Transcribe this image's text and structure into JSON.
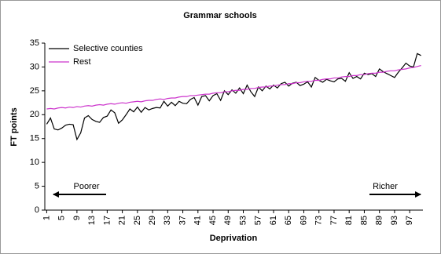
{
  "chart_data": {
    "type": "line",
    "title": "Grammar schools",
    "x_label": "Deprivation",
    "y_label": "FT points",
    "x": [
      1,
      2,
      3,
      4,
      5,
      6,
      7,
      8,
      9,
      10,
      11,
      12,
      13,
      14,
      15,
      16,
      17,
      18,
      19,
      20,
      21,
      22,
      23,
      24,
      25,
      26,
      27,
      28,
      29,
      30,
      31,
      32,
      33,
      34,
      35,
      36,
      37,
      38,
      39,
      40,
      41,
      42,
      43,
      44,
      45,
      46,
      47,
      48,
      49,
      50,
      51,
      52,
      53,
      54,
      55,
      56,
      57,
      58,
      59,
      60,
      61,
      62,
      63,
      64,
      65,
      66,
      67,
      68,
      69,
      70,
      71,
      72,
      73,
      74,
      75,
      76,
      77,
      78,
      79,
      80,
      81,
      82,
      83,
      84,
      85,
      86,
      87,
      88,
      89,
      90,
      91,
      92,
      93,
      94,
      95,
      96,
      97,
      98,
      99,
      100
    ],
    "series": [
      {
        "name": "Selective counties",
        "color": "#000000",
        "values": [
          18.0,
          19.3,
          17.0,
          16.8,
          17.2,
          17.8,
          18.0,
          17.9,
          14.8,
          16.2,
          19.3,
          19.8,
          19.0,
          18.6,
          18.4,
          19.4,
          19.7,
          21.0,
          20.4,
          18.2,
          18.9,
          20.0,
          21.2,
          20.6,
          21.6,
          20.5,
          21.5,
          21.0,
          21.3,
          21.5,
          21.4,
          22.8,
          21.8,
          22.6,
          21.9,
          22.8,
          22.4,
          22.3,
          23.2,
          23.6,
          22.0,
          23.8,
          24.0,
          22.9,
          24.0,
          24.4,
          23.0,
          25.0,
          24.2,
          25.2,
          24.5,
          25.6,
          24.4,
          26.2,
          24.8,
          23.8,
          25.8,
          25.0,
          26.0,
          25.4,
          26.2,
          25.6,
          26.5,
          26.8,
          26.0,
          26.6,
          26.8,
          26.1,
          26.4,
          26.9,
          25.8,
          27.8,
          27.2,
          26.8,
          27.4,
          27.1,
          26.9,
          27.5,
          27.6,
          27.0,
          28.8,
          27.6,
          28.0,
          27.5,
          28.7,
          28.4,
          28.6,
          28.0,
          29.6,
          29.0,
          28.6,
          28.2,
          27.8,
          28.9,
          29.8,
          30.8,
          30.2,
          30.0,
          32.8,
          32.4
        ]
      },
      {
        "name": "Rest",
        "color": "#cc33cc",
        "values": [
          21.2,
          21.3,
          21.2,
          21.4,
          21.5,
          21.4,
          21.6,
          21.5,
          21.7,
          21.6,
          21.8,
          21.9,
          21.8,
          22.0,
          22.1,
          22.0,
          22.2,
          22.3,
          22.2,
          22.4,
          22.5,
          22.4,
          22.6,
          22.7,
          22.8,
          22.7,
          22.9,
          23.0,
          23.0,
          23.2,
          23.3,
          23.2,
          23.4,
          23.5,
          23.5,
          23.7,
          23.8,
          23.8,
          24.0,
          24.0,
          24.1,
          24.2,
          24.3,
          24.3,
          24.5,
          24.6,
          24.6,
          24.8,
          24.8,
          25.0,
          25.1,
          25.1,
          25.3,
          25.3,
          25.5,
          25.5,
          25.7,
          25.8,
          25.8,
          26.0,
          26.0,
          26.2,
          26.3,
          26.3,
          26.5,
          26.5,
          26.7,
          26.7,
          26.9,
          27.0,
          27.0,
          27.2,
          27.2,
          27.4,
          27.5,
          27.5,
          27.7,
          27.7,
          27.9,
          28.0,
          28.0,
          28.2,
          28.2,
          28.4,
          28.4,
          28.6,
          28.7,
          28.7,
          28.9,
          28.9,
          29.1,
          29.2,
          29.2,
          29.4,
          29.5,
          29.6,
          29.8,
          29.9,
          30.1,
          30.3
        ]
      }
    ],
    "xlim": [
      0.5,
      100.5
    ],
    "xticks": [
      1,
      5,
      9,
      13,
      17,
      21,
      25,
      29,
      33,
      37,
      41,
      45,
      49,
      53,
      57,
      61,
      65,
      69,
      73,
      77,
      81,
      85,
      89,
      93,
      97
    ],
    "ylim": [
      0,
      35
    ],
    "yticks": [
      0,
      5,
      10,
      15,
      20,
      25,
      30,
      35
    ],
    "annotations": [
      {
        "text": "Poorer"
      },
      {
        "text": "Richer"
      }
    ],
    "legend": "top-left",
    "grid": false
  }
}
